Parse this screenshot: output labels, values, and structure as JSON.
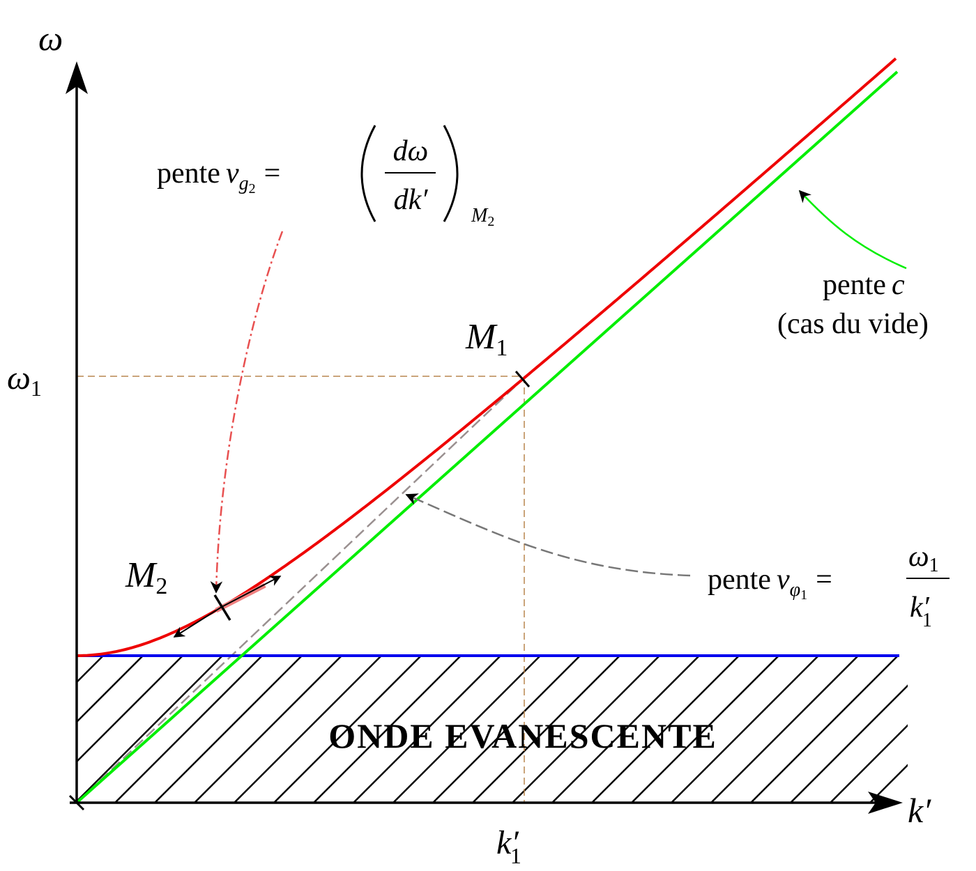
{
  "axes": {
    "y_label": "ω",
    "x_label": "k′"
  },
  "markers": {
    "omega_1": {
      "symbol": "ω",
      "index": "1"
    },
    "k_1": {
      "symbol": "k′",
      "index": "1"
    },
    "M1": {
      "symbol": "M",
      "index": "1"
    },
    "M2": {
      "symbol": "M",
      "index": "2"
    }
  },
  "annotations": {
    "group_velocity": {
      "word": "pente",
      "symbol": "v",
      "index": "g",
      "index_sub": "2",
      "equals": "=",
      "numerator": "dω",
      "denominator": "dk′",
      "at": "M",
      "at_sub": "2"
    },
    "vacuum": {
      "word": "pente",
      "symbol": "c",
      "note": "(cas du vide)"
    },
    "phase_velocity": {
      "word": "pente",
      "symbol": "v",
      "index": "φ",
      "index_sub": "1",
      "equals": "=",
      "numerator": "ω",
      "numerator_sub": "1",
      "denominator": "k′",
      "denominator_sub": "1"
    }
  },
  "region_label": "ONDE EVANESCENTE"
}
